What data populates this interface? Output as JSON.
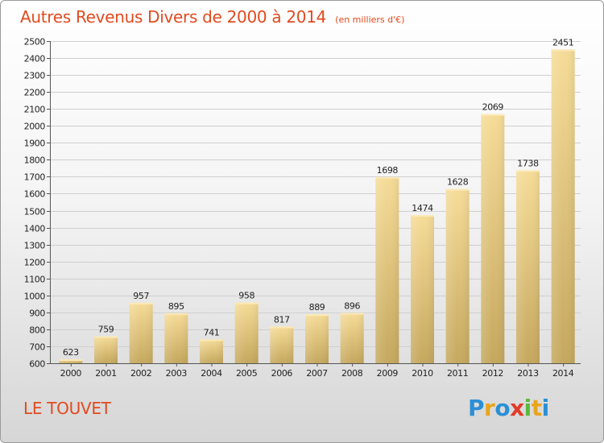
{
  "header": {
    "title": "Autres Revenus Divers de 2000 à 2014",
    "subtitle": "(en milliers d'€)"
  },
  "footer": {
    "location": "LE TOUVET",
    "logo_letters": [
      "P",
      "r",
      "o",
      "x",
      "i",
      "t",
      "i"
    ],
    "logo_colors": [
      "#2b8fd6",
      "#e8a51c",
      "#2b8fd6",
      "#e23b2a",
      "#5db83b",
      "#e8a51c",
      "#2b8fd6"
    ]
  },
  "chart_data": {
    "type": "bar",
    "title": "Autres Revenus Divers de 2000 à 2014",
    "subtitle": "(en milliers d'€)",
    "categories": [
      "2000",
      "2001",
      "2002",
      "2003",
      "2004",
      "2005",
      "2006",
      "2007",
      "2008",
      "2009",
      "2010",
      "2011",
      "2012",
      "2013",
      "2014"
    ],
    "values": [
      623,
      759,
      957,
      895,
      741,
      958,
      817,
      889,
      896,
      1698,
      1474,
      1628,
      2069,
      1738,
      2451
    ],
    "ylim": [
      600,
      2500
    ],
    "yticks": [
      600,
      700,
      800,
      900,
      1000,
      1100,
      1200,
      1300,
      1400,
      1500,
      1600,
      1700,
      1800,
      1900,
      2000,
      2100,
      2200,
      2300,
      2400,
      2500
    ],
    "xlabel": "",
    "ylabel": "",
    "grid": true,
    "data_labels": true,
    "bar_color_top": "#f6dc98",
    "bar_color_bottom": "#c5a85e"
  }
}
